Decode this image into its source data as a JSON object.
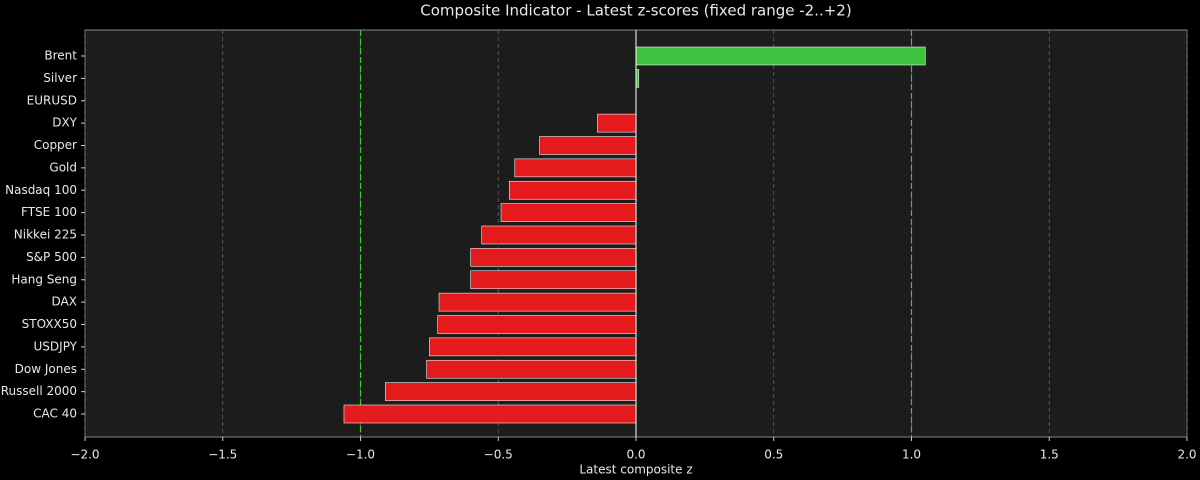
{
  "chart_data": {
    "type": "barh",
    "title": "Composite Indicator - Latest z-scores (fixed range -2..+2)",
    "xlabel": "Latest composite z",
    "categories": [
      "Brent",
      "Silver",
      "EURUSD",
      "DXY",
      "Copper",
      "Gold",
      "Nasdaq 100",
      "FTSE 100",
      "Nikkei 225",
      "S&P 500",
      "Hang Seng",
      "DAX",
      "STOXX50",
      "USDJPY",
      "Dow Jones",
      "Russell 2000",
      "CAC 40"
    ],
    "values": [
      1.05,
      0.01,
      0,
      -0.14,
      -0.35,
      -0.44,
      -0.46,
      -0.49,
      -0.56,
      -0.6,
      -0.6,
      -0.715,
      -0.72,
      -0.75,
      -0.76,
      -0.91,
      -1.06
    ],
    "positive_color": "#3fc13f",
    "negative_color": "#e41a1c",
    "xlim": [
      -2,
      2
    ],
    "xticks": [
      {
        "value": -2,
        "label": "−2.0"
      },
      {
        "value": -1.5,
        "label": "−1.5"
      },
      {
        "value": -1,
        "label": "−1.0"
      },
      {
        "value": -0.5,
        "label": "−0.5"
      },
      {
        "value": 0,
        "label": "0.0"
      },
      {
        "value": 0.5,
        "label": "0.5"
      },
      {
        "value": 1,
        "label": "1.0"
      },
      {
        "value": 1.5,
        "label": "1.5"
      },
      {
        "value": 2,
        "label": "2.0"
      }
    ],
    "thresholds": [
      -1,
      1
    ],
    "threshold_color": "#33cc33",
    "grid": true
  }
}
